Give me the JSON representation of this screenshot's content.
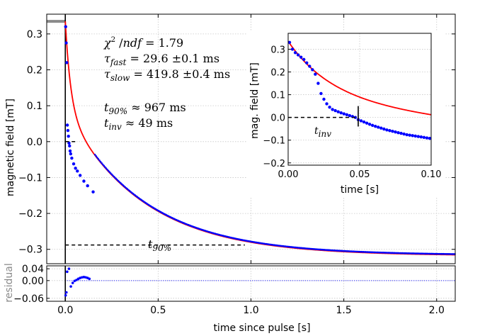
{
  "chart_data": [
    {
      "id": "main",
      "type": "scatter",
      "xlabel": "",
      "ylabel": "magnetic field [mT]",
      "xlim": [
        -0.1,
        2.1
      ],
      "ylim": [
        -0.34,
        0.355
      ],
      "xticks": [
        0.0,
        0.5,
        1.0,
        1.5,
        2.0
      ],
      "yticks": [
        -0.3,
        -0.2,
        -0.1,
        0.0,
        0.1,
        0.2,
        0.3
      ],
      "xtick_labels": [
        "0.0",
        "0.5",
        "1.0",
        "1.5",
        "2.0"
      ],
      "ytick_labels": [
        "−0.3",
        "−0.2",
        "−0.1",
        "0.0",
        "0.1",
        "0.2",
        "0.3"
      ],
      "baseline_before_pulse": {
        "x_from": -0.1,
        "x_to": 0.0,
        "value": 0.335,
        "color": "#888888"
      },
      "pulse_line_x": 0.0,
      "model": {
        "offset": -0.318,
        "amp_fast": 0.245,
        "tau_fast": 0.0296,
        "amp_slow": 0.408,
        "tau_slow": 0.4198
      },
      "series": [
        {
          "name": "data",
          "color": "#0000ff",
          "marker": "dot",
          "x": [
            0.002,
            0.005,
            0.008,
            0.011,
            0.014,
            0.017,
            0.02,
            0.023,
            0.026,
            0.029,
            0.035,
            0.045,
            0.055,
            0.065,
            0.08,
            0.1,
            0.12,
            0.15
          ],
          "y": [
            0.32,
            0.275,
            0.22,
            0.046,
            0.031,
            0.015,
            -0.004,
            -0.012,
            -0.026,
            -0.034,
            -0.046,
            -0.062,
            -0.074,
            -0.082,
            -0.094,
            -0.11,
            -0.123,
            -0.14
          ]
        },
        {
          "name": "fit",
          "color": "#ff0000",
          "marker": "line"
        }
      ],
      "annotations": {
        "chi2": "χ² /ndf = 1.79",
        "tau_fast": "τfast = 29.6 ±0.1 ms",
        "tau_slow": "τslow = 419.8 ±0.4 ms",
        "t90": "t90% ≈ 967 ms",
        "tinv": "tinv ≈ 49 ms",
        "t90_marker_label": "t90%",
        "t90_level": -0.288,
        "t90_x_from": 0.0,
        "t90_x_to": 0.967,
        "tinv_marker_x": 0.0,
        "tinv_marker_to": 0.049
      }
    },
    {
      "id": "residual",
      "type": "scatter",
      "xlabel": "time since pulse [s]",
      "ylabel": "residual",
      "xlim": [
        -0.1,
        2.1
      ],
      "ylim": [
        -0.07,
        0.05
      ],
      "yticks": [
        0.04,
        0.0,
        -0.06
      ],
      "ytick_labels": [
        "0.04",
        "0.00",
        "−0.06"
      ],
      "series": [
        {
          "name": "residual",
          "color": "#0000ff",
          "x": [
            0.002,
            0.006,
            0.01,
            0.02,
            0.03,
            0.04,
            0.05,
            0.06,
            0.07,
            0.08,
            0.09,
            0.1,
            0.11,
            0.12,
            0.13
          ],
          "y": [
            -0.05,
            -0.04,
            0.03,
            0.04,
            -0.02,
            -0.008,
            -0.001,
            0.002,
            0.006,
            0.009,
            0.011,
            0.012,
            0.011,
            0.009,
            0.006
          ]
        }
      ]
    },
    {
      "id": "inset",
      "type": "scatter",
      "xlabel": "time [s]",
      "ylabel": "mag. field [mT]",
      "xlim": [
        0.0,
        0.1
      ],
      "ylim": [
        -0.21,
        0.37
      ],
      "xticks": [
        0.0,
        0.05,
        0.1
      ],
      "xtick_labels": [
        "0.00",
        "0.05",
        "0.10"
      ],
      "yticks": [
        -0.2,
        -0.1,
        0.0,
        0.1,
        0.2,
        0.3
      ],
      "ytick_labels": [
        "−0.2",
        "−0.1",
        "0.0",
        "0.1",
        "0.2",
        "0.3"
      ],
      "series": [
        {
          "name": "data",
          "color": "#0000ff",
          "x": [
            0.001,
            0.003,
            0.005,
            0.007,
            0.009,
            0.011,
            0.013,
            0.015,
            0.017,
            0.019,
            0.021,
            0.023,
            0.025,
            0.027,
            0.029,
            0.031,
            0.033,
            0.035,
            0.037,
            0.039,
            0.041,
            0.043,
            0.045,
            0.047,
            0.049,
            0.051,
            0.053,
            0.055,
            0.057,
            0.059,
            0.061,
            0.063,
            0.065,
            0.067,
            0.069,
            0.071,
            0.073,
            0.075,
            0.077,
            0.079,
            0.081,
            0.083,
            0.085,
            0.087,
            0.089,
            0.091,
            0.093,
            0.095,
            0.097,
            0.099
          ],
          "y": [
            0.33,
            0.3,
            0.285,
            0.275,
            0.265,
            0.255,
            0.24,
            0.225,
            0.21,
            0.19,
            0.15,
            0.105,
            0.08,
            0.06,
            0.045,
            0.035,
            0.03,
            0.025,
            0.02,
            0.016,
            0.012,
            0.008,
            0.004,
            0.0,
            -0.01,
            -0.015,
            -0.02,
            -0.025,
            -0.03,
            -0.035,
            -0.039,
            -0.043,
            -0.047,
            -0.051,
            -0.055,
            -0.058,
            -0.061,
            -0.064,
            -0.067,
            -0.07,
            -0.073,
            -0.076,
            -0.078,
            -0.08,
            -0.082,
            -0.084,
            -0.086,
            -0.088,
            -0.09,
            -0.092
          ]
        },
        {
          "name": "fit",
          "color": "#ff0000",
          "marker": "line"
        }
      ],
      "annotations": {
        "tinv_label": "tinv",
        "tinv_x": 0.049,
        "tinv_level": 0.0
      }
    }
  ]
}
